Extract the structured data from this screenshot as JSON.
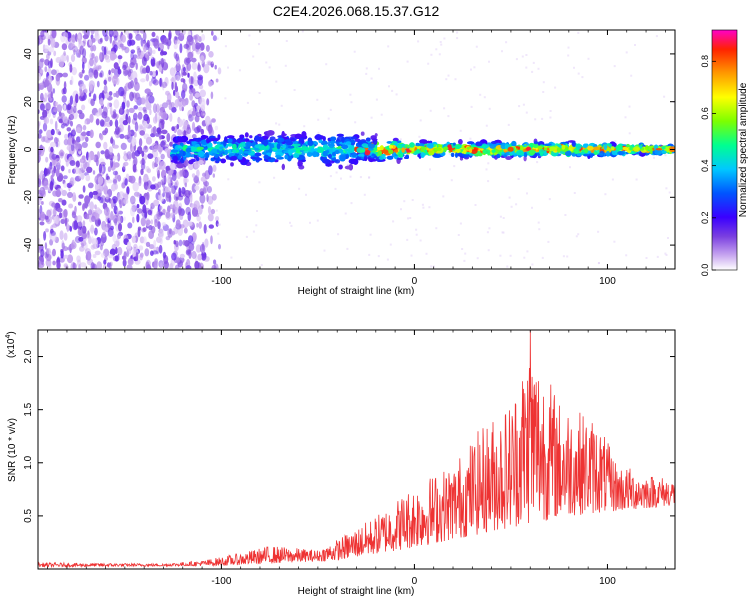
{
  "page_title": "C2E4.2026.068.15.37.G12",
  "chart_data": [
    {
      "type": "heatmap",
      "title": "C2E4.2026.068.15.37.G12",
      "xlabel": "Height of straight line (km)",
      "ylabel": "Frequency (Hz)",
      "xlim": [
        -195,
        135
      ],
      "ylim": [
        -50,
        50
      ],
      "xticks": [
        -100,
        0,
        100
      ],
      "xtick_labels": [
        "-100",
        "0",
        "100"
      ],
      "yticks": [
        -40,
        -20,
        0,
        20,
        40
      ],
      "ytick_labels": [
        "-40",
        "-20",
        "0",
        "20",
        "40"
      ],
      "colorbar": {
        "label": "Normalized spectral amplitude",
        "range": [
          0,
          0.92
        ],
        "ticks": [
          0.0,
          0.2,
          0.4,
          0.6,
          0.8
        ],
        "tick_labels": [
          "0.0",
          "0.2",
          "0.4",
          "0.6",
          "0.8"
        ],
        "colormap": [
          "#ffffff",
          "#c9a8f0",
          "#7a3fe0",
          "#3a00ff",
          "#0055ff",
          "#00c8ff",
          "#00ff90",
          "#7dff00",
          "#ffff00",
          "#ff9900",
          "#ff2200",
          "#ff00c8"
        ]
      },
      "noise_region_x": [
        -195,
        -100
      ],
      "signal_band_center_hz": 0,
      "signal_band_halfwidth_hz": [
        {
          "x": -120,
          "hz": 8
        },
        {
          "x": -40,
          "hz": 10
        },
        {
          "x": 0,
          "hz": 4
        },
        {
          "x": 80,
          "hz": 4
        },
        {
          "x": 130,
          "hz": 2
        }
      ]
    },
    {
      "type": "line",
      "xlabel": "Height of straight line (km)",
      "ylabel": "SNR (10 * v/v)",
      "y_multiplier_label": "(x10",
      "y_multiplier_exp": "4",
      "y_multiplier_close": ")",
      "xlim": [
        -195,
        135
      ],
      "ylim": [
        0,
        2.25
      ],
      "xticks": [
        -100,
        0,
        100
      ],
      "xtick_labels": [
        "-100",
        "0",
        "100"
      ],
      "yticks": [
        0.5,
        1.0,
        1.5,
        2.0
      ],
      "ytick_labels": [
        "0.5",
        "1.0",
        "1.5",
        "2.0"
      ],
      "series": [
        {
          "name": "SNR",
          "color": "#ee3333",
          "envelope": [
            {
              "x": -195,
              "y": 0.06
            },
            {
              "x": -130,
              "y": 0.05
            },
            {
              "x": -110,
              "y": 0.08
            },
            {
              "x": -90,
              "y": 0.15
            },
            {
              "x": -75,
              "y": 0.22
            },
            {
              "x": -50,
              "y": 0.18
            },
            {
              "x": -38,
              "y": 0.3
            },
            {
              "x": -20,
              "y": 0.5
            },
            {
              "x": 0,
              "y": 0.8
            },
            {
              "x": 20,
              "y": 1.0
            },
            {
              "x": 35,
              "y": 1.35
            },
            {
              "x": 50,
              "y": 1.6
            },
            {
              "x": 60,
              "y": 2.2
            },
            {
              "x": 75,
              "y": 1.6
            },
            {
              "x": 95,
              "y": 1.4
            },
            {
              "x": 105,
              "y": 1.0
            },
            {
              "x": 120,
              "y": 0.9
            },
            {
              "x": 135,
              "y": 0.85
            }
          ],
          "baseline": [
            {
              "x": -195,
              "y": 0.02
            },
            {
              "x": -100,
              "y": 0.03
            },
            {
              "x": -40,
              "y": 0.08
            },
            {
              "x": 0,
              "y": 0.2
            },
            {
              "x": 40,
              "y": 0.35
            },
            {
              "x": 80,
              "y": 0.5
            },
            {
              "x": 110,
              "y": 0.55
            },
            {
              "x": 135,
              "y": 0.6
            }
          ]
        }
      ]
    }
  ]
}
